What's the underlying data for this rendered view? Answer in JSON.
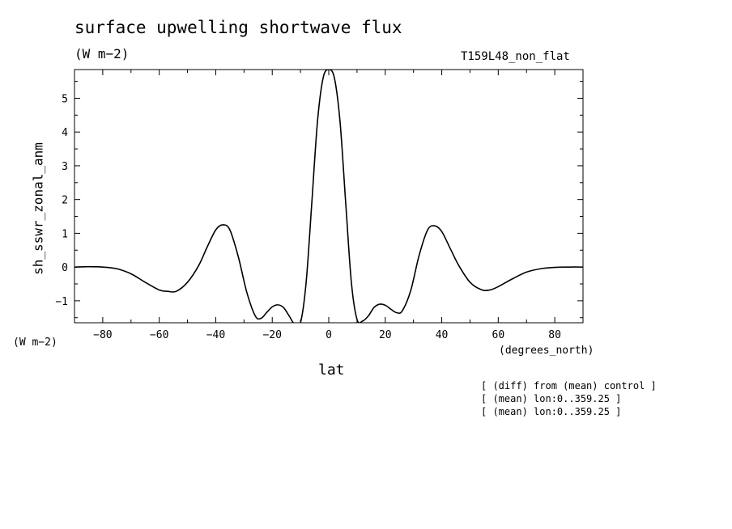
{
  "chart_data": {
    "type": "line",
    "title": "surface upwelling shortwave flux",
    "units_label": "(W m−2)",
    "run_label": "T159L48_non_flat",
    "ylabel": "sh_sswr_zonal_anm",
    "y_units": "(W m−2)",
    "xlabel": "lat",
    "x_units": "(degrees_north)",
    "xlim": [
      -90,
      90
    ],
    "ylim": [
      -1.65,
      5.85
    ],
    "xticks": [
      -80,
      -60,
      -40,
      -20,
      0,
      20,
      40,
      60,
      80
    ],
    "xtick_labels": [
      "−80",
      "−60",
      "−40",
      "−20",
      "0",
      "20",
      "40",
      "60",
      "80"
    ],
    "yticks": [
      -1,
      0,
      1,
      2,
      3,
      4,
      5
    ],
    "ytick_labels": [
      "−1",
      "0",
      "1",
      "2",
      "3",
      "4",
      "5"
    ],
    "grid": false,
    "notes": [
      "[ (diff) from (mean) control ]",
      "[ (mean) lon:0..359.25 ]",
      "[ (mean) lon:0..359.25 ]"
    ],
    "series": [
      {
        "x": [
          -90,
          -85,
          -80,
          -75,
          -70,
          -65,
          -60,
          -57,
          -54,
          -50,
          -46,
          -43,
          -40,
          -37.5,
          -35,
          -32,
          -29,
          -26,
          -24,
          -22,
          -20,
          -18,
          -16,
          -14,
          -12,
          -10,
          -8,
          -6,
          -4,
          -2,
          0,
          2,
          4,
          6,
          8,
          10,
          12,
          14,
          16,
          18,
          20,
          22,
          24,
          26,
          29,
          32,
          35,
          37.5,
          40,
          43,
          46,
          50,
          54,
          57,
          60,
          65,
          70,
          75,
          80,
          85,
          90
        ],
        "y": [
          0,
          0.01,
          0.0,
          -0.05,
          -0.2,
          -0.45,
          -0.68,
          -0.72,
          -0.72,
          -0.45,
          0.05,
          0.6,
          1.1,
          1.25,
          1.1,
          0.3,
          -0.75,
          -1.45,
          -1.52,
          -1.35,
          -1.18,
          -1.12,
          -1.2,
          -1.45,
          -1.7,
          -1.65,
          -0.45,
          1.9,
          4.3,
          5.6,
          5.85,
          5.6,
          4.3,
          1.9,
          -0.45,
          -1.55,
          -1.6,
          -1.45,
          -1.2,
          -1.1,
          -1.13,
          -1.25,
          -1.35,
          -1.3,
          -0.7,
          0.35,
          1.1,
          1.22,
          1.05,
          0.55,
          0.05,
          -0.45,
          -0.67,
          -0.68,
          -0.58,
          -0.35,
          -0.15,
          -0.05,
          -0.01,
          0,
          0
        ]
      }
    ]
  }
}
